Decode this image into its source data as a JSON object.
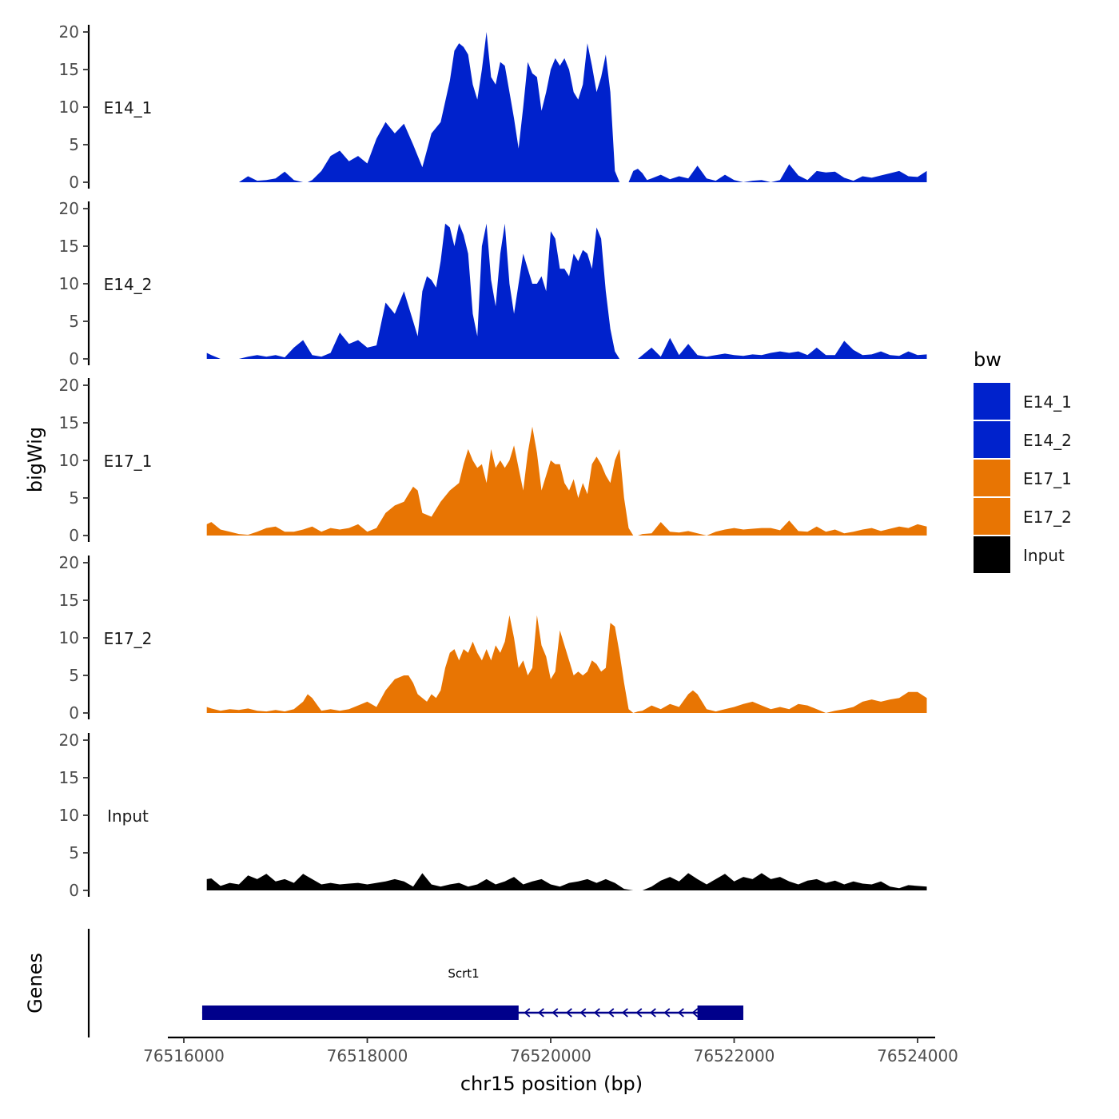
{
  "chart_data": {
    "type": "area",
    "title": "",
    "xlabel": "chr15 position (bp)",
    "ylabel": "bigWig",
    "genes_label": "Genes",
    "xlim": [
      76515900,
      76524200
    ],
    "ylim": [
      0,
      20
    ],
    "x_ticks": [
      76516000,
      76518000,
      76520000,
      76522000,
      76524000
    ],
    "x_tick_labels": [
      "76516000",
      "76518000",
      "76520000",
      "76522000",
      "76524000"
    ],
    "y_ticks": [
      0,
      5,
      10,
      15,
      20
    ],
    "y_tick_labels": [
      "0",
      "5",
      "10",
      "15",
      "20"
    ],
    "legend": {
      "title": "bw",
      "placement": "right",
      "items": [
        {
          "label": "E14_1",
          "color": "#0022CC"
        },
        {
          "label": "E14_2",
          "color": "#0022CC"
        },
        {
          "label": "E17_1",
          "color": "#E87503"
        },
        {
          "label": "E17_2",
          "color": "#E87503"
        },
        {
          "label": "Input",
          "color": "#000000"
        }
      ]
    },
    "series": [
      {
        "name": "E14_1",
        "color": "#0022CC",
        "x": [
          76516600,
          76516700,
          76516800,
          76516900,
          76517000,
          76517100,
          76517200,
          76517300,
          76517350,
          76517400,
          76517500,
          76517600,
          76517700,
          76517800,
          76517900,
          76518000,
          76518100,
          76518200,
          76518300,
          76518400,
          76518500,
          76518600,
          76518700,
          76518800,
          76518900,
          76518950,
          76519000,
          76519050,
          76519100,
          76519150,
          76519200,
          76519250,
          76519300,
          76519350,
          76519400,
          76519450,
          76519500,
          76519550,
          76519600,
          76519650,
          76519700,
          76519750,
          76519800,
          76519850,
          76519900,
          76519950,
          76520000,
          76520050,
          76520100,
          76520150,
          76520200,
          76520250,
          76520300,
          76520350,
          76520400,
          76520450,
          76520500,
          76520550,
          76520600,
          76520650,
          76520700,
          76520750,
          76520800,
          76520850,
          76520900,
          76520950,
          76521000,
          76521050,
          76521100,
          76521200,
          76521300,
          76521400,
          76521500,
          76521600,
          76521700,
          76521800,
          76521900,
          76522000,
          76522100,
          76522200,
          76522300,
          76522400,
          76522500,
          76522600,
          76522700,
          76522800,
          76522900,
          76523000,
          76523100,
          76523200,
          76523300,
          76523400,
          76523500,
          76523600,
          76523700,
          76523800,
          76523900,
          76524000,
          76524100
        ],
        "values": [
          0,
          0.8,
          0.2,
          0.3,
          0.5,
          1.4,
          0.3,
          0,
          0,
          0.3,
          1.5,
          3.5,
          4.2,
          2.8,
          3.5,
          2.5,
          5.8,
          8.0,
          6.5,
          7.8,
          5.0,
          2.0,
          6.5,
          8.0,
          13.5,
          17.5,
          18.5,
          18.0,
          17.0,
          13.0,
          11.0,
          15.0,
          20.0,
          14.0,
          13.0,
          16.0,
          15.5,
          12.0,
          8.5,
          4.5,
          10.0,
          16.0,
          14.5,
          14.0,
          9.5,
          12.0,
          15.0,
          16.5,
          15.5,
          16.5,
          15.0,
          12.0,
          11.0,
          13.0,
          18.5,
          15.5,
          12.0,
          14.0,
          17.0,
          12.0,
          1.5,
          0,
          0,
          0,
          1.5,
          1.8,
          1.2,
          0.3,
          0.5,
          1.0,
          0.4,
          0.8,
          0.5,
          2.2,
          0.5,
          0.2,
          1.0,
          0.3,
          0,
          0.2,
          0.3,
          0,
          0.3,
          2.4,
          0.9,
          0.3,
          1.5,
          1.3,
          1.4,
          0.6,
          0.2,
          0.8,
          0.6,
          0.9,
          1.2,
          1.5,
          0.8,
          0.7,
          1.5
        ]
      },
      {
        "name": "E14_2",
        "color": "#0022CC",
        "x": [
          76516250,
          76516300,
          76516400,
          76516500,
          76516600,
          76516700,
          76516800,
          76516900,
          76517000,
          76517100,
          76517200,
          76517300,
          76517400,
          76517500,
          76517600,
          76517700,
          76517800,
          76517900,
          76518000,
          76518100,
          76518200,
          76518300,
          76518400,
          76518500,
          76518550,
          76518600,
          76518650,
          76518700,
          76518750,
          76518800,
          76518850,
          76518900,
          76518950,
          76519000,
          76519050,
          76519100,
          76519150,
          76519200,
          76519250,
          76519300,
          76519350,
          76519400,
          76519450,
          76519500,
          76519550,
          76519600,
          76519650,
          76519700,
          76519750,
          76519800,
          76519850,
          76519900,
          76519950,
          76520000,
          76520050,
          76520100,
          76520150,
          76520200,
          76520250,
          76520300,
          76520350,
          76520400,
          76520450,
          76520500,
          76520550,
          76520600,
          76520650,
          76520700,
          76520750,
          76520800,
          76520850,
          76520900,
          76520950,
          76521000,
          76521100,
          76521200,
          76521300,
          76521400,
          76521500,
          76521600,
          76521700,
          76521800,
          76521900,
          76522000,
          76522100,
          76522200,
          76522300,
          76522400,
          76522500,
          76522600,
          76522700,
          76522800,
          76522900,
          76523000,
          76523100,
          76523200,
          76523300,
          76523400,
          76523500,
          76523600,
          76523700,
          76523800,
          76523900,
          76524000,
          76524100
        ],
        "values": [
          0.8,
          0.5,
          0,
          0,
          0,
          0.3,
          0.5,
          0.3,
          0.5,
          0.2,
          1.5,
          2.5,
          0.5,
          0.3,
          0.8,
          3.5,
          2.0,
          2.5,
          1.5,
          1.8,
          7.5,
          6.0,
          9.0,
          5.0,
          3.0,
          9.0,
          11.0,
          10.5,
          9.5,
          13.0,
          18.0,
          17.5,
          15.0,
          18.0,
          16.5,
          14.0,
          6.0,
          3.0,
          15.0,
          18.0,
          10.5,
          7.0,
          14.0,
          18.0,
          10.0,
          6.0,
          10.0,
          14.0,
          12.0,
          10.0,
          10.0,
          11.0,
          9.0,
          17.0,
          16.0,
          12.0,
          12.0,
          11.0,
          14.0,
          13.0,
          14.5,
          14.0,
          12.0,
          17.5,
          16.0,
          9.0,
          4.0,
          1.0,
          0,
          0,
          0,
          0,
          0,
          0.5,
          1.5,
          0.3,
          2.8,
          0.5,
          2.0,
          0.5,
          0.3,
          0.5,
          0.7,
          0.5,
          0.4,
          0.6,
          0.5,
          0.8,
          1.0,
          0.8,
          1.0,
          0.5,
          1.5,
          0.5,
          0.5,
          2.4,
          1.2,
          0.5,
          0.6,
          1.0,
          0.5,
          0.4,
          1.0,
          0.5,
          0.6
        ]
      },
      {
        "name": "E17_1",
        "color": "#E87503",
        "x": [
          76516250,
          76516300,
          76516400,
          76516500,
          76516600,
          76516700,
          76516800,
          76516900,
          76517000,
          76517100,
          76517200,
          76517300,
          76517400,
          76517500,
          76517600,
          76517700,
          76517800,
          76517900,
          76518000,
          76518100,
          76518200,
          76518300,
          76518400,
          76518450,
          76518500,
          76518550,
          76518600,
          76518700,
          76518800,
          76518900,
          76519000,
          76519050,
          76519100,
          76519150,
          76519200,
          76519250,
          76519300,
          76519350,
          76519400,
          76519450,
          76519500,
          76519550,
          76519600,
          76519650,
          76519700,
          76519750,
          76519800,
          76519850,
          76519900,
          76519950,
          76520000,
          76520050,
          76520100,
          76520150,
          76520200,
          76520250,
          76520300,
          76520350,
          76520400,
          76520450,
          76520500,
          76520550,
          76520600,
          76520650,
          76520700,
          76520750,
          76520800,
          76520850,
          76520900,
          76520950,
          76521000,
          76521100,
          76521200,
          76521300,
          76521400,
          76521500,
          76521600,
          76521700,
          76521800,
          76521900,
          76522000,
          76522100,
          76522200,
          76522300,
          76522400,
          76522500,
          76522600,
          76522700,
          76522800,
          76522900,
          76523000,
          76523100,
          76523200,
          76523300,
          76523400,
          76523500,
          76523600,
          76523700,
          76523800,
          76523900,
          76524000,
          76524100
        ],
        "values": [
          1.5,
          1.8,
          0.8,
          0.5,
          0.2,
          0.1,
          0.5,
          1.0,
          1.2,
          0.5,
          0.5,
          0.8,
          1.2,
          0.5,
          1.0,
          0.8,
          1.0,
          1.5,
          0.5,
          1.0,
          3.0,
          4.0,
          4.5,
          5.5,
          6.5,
          6.0,
          3.0,
          2.5,
          4.5,
          6.0,
          7.0,
          9.5,
          11.5,
          10.0,
          9.0,
          9.5,
          7.0,
          11.5,
          9.0,
          10.0,
          9.0,
          10.0,
          12.0,
          9.0,
          6.0,
          11.0,
          14.5,
          11.0,
          6.0,
          8.0,
          10.0,
          9.5,
          9.5,
          7.0,
          6.0,
          7.5,
          5.0,
          7.0,
          5.5,
          9.5,
          10.5,
          9.5,
          8.0,
          7.0,
          10.0,
          11.5,
          5.0,
          1.0,
          0,
          0,
          0.2,
          0.3,
          1.8,
          0.5,
          0.4,
          0.6,
          0.3,
          0,
          0.5,
          0.8,
          1.0,
          0.8,
          0.9,
          1.0,
          1.0,
          0.7,
          2.0,
          0.6,
          0.5,
          1.2,
          0.5,
          0.8,
          0.3,
          0.5,
          0.8,
          1.0,
          0.6,
          0.9,
          1.2,
          1.0,
          1.5,
          1.2
        ]
      },
      {
        "name": "E17_2",
        "color": "#E87503",
        "x": [
          76516250,
          76516300,
          76516400,
          76516500,
          76516600,
          76516700,
          76516800,
          76516900,
          76517000,
          76517100,
          76517200,
          76517300,
          76517350,
          76517400,
          76517500,
          76517600,
          76517700,
          76517800,
          76517900,
          76518000,
          76518100,
          76518200,
          76518300,
          76518400,
          76518450,
          76518500,
          76518550,
          76518600,
          76518650,
          76518700,
          76518750,
          76518800,
          76518850,
          76518900,
          76518950,
          76519000,
          76519050,
          76519100,
          76519150,
          76519200,
          76519250,
          76519300,
          76519350,
          76519400,
          76519450,
          76519500,
          76519550,
          76519600,
          76519650,
          76519700,
          76519750,
          76519800,
          76519850,
          76519900,
          76519950,
          76520000,
          76520050,
          76520100,
          76520150,
          76520200,
          76520250,
          76520300,
          76520350,
          76520400,
          76520450,
          76520500,
          76520550,
          76520600,
          76520650,
          76520700,
          76520750,
          76520800,
          76520850,
          76520900,
          76520950,
          76521000,
          76521100,
          76521200,
          76521300,
          76521400,
          76521500,
          76521550,
          76521600,
          76521700,
          76521800,
          76521900,
          76522000,
          76522100,
          76522200,
          76522300,
          76522400,
          76522500,
          76522600,
          76522700,
          76522800,
          76522900,
          76523000,
          76523100,
          76523200,
          76523300,
          76523400,
          76523500,
          76523600,
          76523700,
          76523800,
          76523900,
          76524000,
          76524100
        ],
        "values": [
          0.8,
          0.6,
          0.3,
          0.5,
          0.4,
          0.6,
          0.3,
          0.2,
          0.4,
          0.2,
          0.5,
          1.5,
          2.5,
          2.0,
          0.3,
          0.5,
          0.3,
          0.5,
          1.0,
          1.5,
          0.8,
          3.0,
          4.5,
          5.0,
          5.0,
          4.0,
          2.5,
          2.0,
          1.5,
          2.5,
          2.0,
          3.0,
          6.0,
          8.0,
          8.5,
          7.0,
          8.5,
          8.0,
          9.5,
          8.0,
          7.0,
          8.5,
          7.0,
          9.0,
          8.0,
          9.5,
          13.0,
          10.0,
          6.0,
          7.0,
          5.0,
          6.0,
          13.0,
          9.0,
          7.5,
          4.5,
          5.5,
          11.0,
          9.0,
          7.0,
          5.0,
          5.5,
          5.0,
          5.5,
          7.0,
          6.5,
          5.5,
          6.0,
          12.0,
          11.5,
          8.0,
          4.0,
          0.5,
          0,
          0.2,
          0.3,
          1.0,
          0.5,
          1.2,
          0.8,
          2.5,
          3.0,
          2.5,
          0.5,
          0.2,
          0.5,
          0.8,
          1.2,
          1.5,
          1.0,
          0.5,
          0.8,
          0.5,
          1.2,
          1.0,
          0.5,
          0,
          0.3,
          0.5,
          0.8,
          1.5,
          1.8,
          1.5,
          1.8,
          2.0,
          2.8,
          2.8,
          2.0
        ]
      },
      {
        "name": "Input",
        "color": "#000000",
        "x": [
          76516250,
          76516300,
          76516400,
          76516500,
          76516600,
          76516700,
          76516800,
          76516900,
          76517000,
          76517100,
          76517200,
          76517300,
          76517400,
          76517500,
          76517600,
          76517700,
          76517800,
          76517900,
          76518000,
          76518100,
          76518200,
          76518300,
          76518400,
          76518500,
          76518600,
          76518700,
          76518800,
          76518900,
          76519000,
          76519100,
          76519200,
          76519300,
          76519400,
          76519500,
          76519600,
          76519700,
          76519800,
          76519900,
          76520000,
          76520100,
          76520200,
          76520300,
          76520400,
          76520500,
          76520600,
          76520700,
          76520800,
          76520900,
          76521000,
          76521100,
          76521200,
          76521300,
          76521400,
          76521500,
          76521600,
          76521700,
          76521800,
          76521900,
          76522000,
          76522100,
          76522200,
          76522300,
          76522400,
          76522500,
          76522600,
          76522700,
          76522800,
          76522900,
          76523000,
          76523100,
          76523200,
          76523300,
          76523400,
          76523500,
          76523600,
          76523700,
          76523800,
          76523900,
          76524000,
          76524100
        ],
        "values": [
          1.5,
          1.6,
          0.6,
          1.0,
          0.8,
          2.0,
          1.5,
          2.2,
          1.2,
          1.5,
          1.0,
          2.2,
          1.5,
          0.8,
          1.0,
          0.8,
          0.9,
          1.0,
          0.8,
          1.0,
          1.2,
          1.5,
          1.2,
          0.5,
          2.3,
          0.8,
          0.5,
          0.8,
          1.0,
          0.5,
          0.8,
          1.5,
          0.8,
          1.2,
          1.8,
          0.8,
          1.2,
          1.5,
          0.8,
          0.5,
          1.0,
          1.2,
          1.5,
          1.0,
          1.5,
          1.0,
          0.2,
          0,
          0,
          0.5,
          1.3,
          1.8,
          1.2,
          2.3,
          1.5,
          0.8,
          1.5,
          2.2,
          1.2,
          1.8,
          1.5,
          2.3,
          1.5,
          1.8,
          1.2,
          0.8,
          1.3,
          1.5,
          1.0,
          1.3,
          0.8,
          1.2,
          0.9,
          0.8,
          1.2,
          0.5,
          0.3,
          0.7,
          0.6,
          0.5
        ]
      }
    ],
    "genes": [
      {
        "name": "Scrt1",
        "strand": "-",
        "start": 76516200,
        "end": 76522100,
        "exons": [
          [
            76516200,
            76519650
          ],
          [
            76521600,
            76522100
          ]
        ]
      }
    ]
  }
}
